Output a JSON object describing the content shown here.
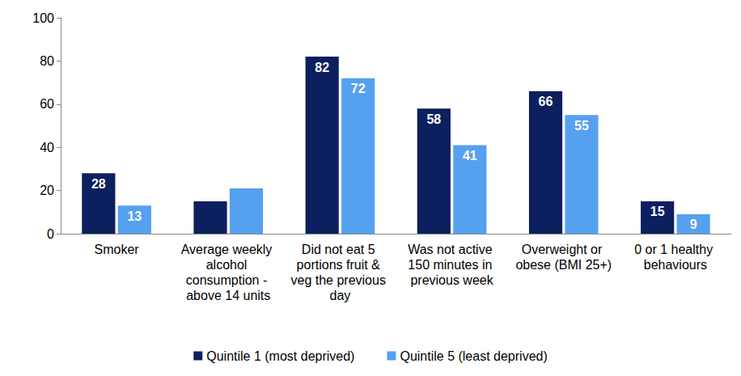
{
  "chart_data": {
    "type": "bar",
    "categories": [
      "Smoker",
      "Average weekly alcohol consumption - above 14 units",
      "Did not eat 5 portions fruit & veg the previous day",
      "Was not active 150 minutes in previous week",
      "Overweight or obese (BMI 25+)",
      "0 or 1 healthy behaviours"
    ],
    "series": [
      {
        "name": "Quintile 1 (most deprived)",
        "color": "#0c1f5e",
        "values": [
          28,
          15,
          82,
          58,
          66,
          15
        ],
        "value_labels": [
          "28",
          null,
          "82",
          "58",
          "66",
          "15"
        ]
      },
      {
        "name": "Quintile 5 (least deprived)",
        "color": "#56a0f0",
        "values": [
          13,
          21,
          72,
          41,
          55,
          9
        ],
        "value_labels": [
          "13",
          null,
          "72",
          "41",
          "55",
          "9"
        ]
      }
    ],
    "ylim": [
      0,
      100
    ],
    "yticks": [
      0,
      20,
      40,
      60,
      80,
      100
    ],
    "grid": false,
    "legend": "bottom",
    "data_labels": true
  }
}
